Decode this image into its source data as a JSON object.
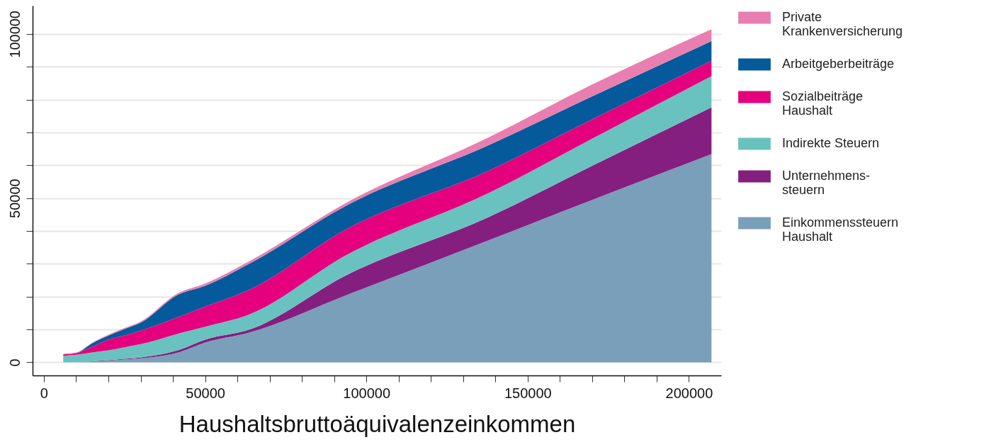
{
  "chart_data": {
    "type": "area",
    "stacked": true,
    "xlabel": "Haushaltsbruttoäquivalenzeinkommen",
    "x": [
      6000,
      10000,
      15000,
      20000,
      25000,
      30000,
      41500,
      50000,
      63500,
      94000,
      138000,
      170000,
      207000
    ],
    "series": [
      {
        "name": "Einkommenssteuern\nHaushalt",
        "color": "#7a9fba",
        "values": [
          0,
          0,
          200,
          500,
          850,
          1220,
          2950,
          6030,
          9000,
          20540,
          37210,
          49450,
          63430
        ]
      },
      {
        "name": "Unternehmens-\nsteuern",
        "color": "#841f80",
        "values": [
          0,
          0,
          100,
          140,
          200,
          280,
          710,
          870,
          900,
          6110,
          7040,
          10390,
          14230
        ]
      },
      {
        "name": "Indirekte Steuern",
        "color": "#69c2bf",
        "values": [
          2000,
          2300,
          2700,
          3020,
          3550,
          4030,
          5030,
          3940,
          4600,
          6110,
          7330,
          8260,
          9480
        ]
      },
      {
        "name": "Sozialbeiträge\nHaushalt",
        "color": "#e5007e",
        "values": [
          400,
          500,
          1740,
          3240,
          3600,
          4100,
          5030,
          6120,
          7500,
          7900,
          6830,
          5900,
          4670
        ]
      },
      {
        "name": "Arbeitgeberbeiträge",
        "color": "#045a9b",
        "values": [
          0,
          0,
          1080,
          1220,
          1930,
          2440,
          6820,
          6320,
          7900,
          7180,
          7750,
          7000,
          6030
        ]
      },
      {
        "name": "Private\nKrankenversicherung",
        "color": "#e87fb0",
        "values": [
          200,
          200,
          180,
          280,
          300,
          330,
          460,
          720,
          800,
          870,
          2370,
          3590,
          3600
        ]
      }
    ],
    "xlim": [
      -3500,
      210000
    ],
    "xticks": [
      0,
      {
        "value": 10000,
        "label": null
      },
      {
        "value": 20000,
        "label": null
      },
      {
        "value": 30000,
        "label": null
      },
      {
        "value": 40000,
        "label": null
      },
      50000,
      {
        "value": 60000,
        "label": null
      },
      {
        "value": 70000,
        "label": null
      },
      {
        "value": 80000,
        "label": null
      },
      {
        "value": 90000,
        "label": null
      },
      100000,
      {
        "value": 110000,
        "label": null
      },
      {
        "value": 120000,
        "label": null
      },
      {
        "value": 130000,
        "label": null
      },
      {
        "value": 140000,
        "label": null
      },
      150000,
      {
        "value": 160000,
        "label": null
      },
      {
        "value": 170000,
        "label": null
      },
      {
        "value": 180000,
        "label": null
      },
      {
        "value": 190000,
        "label": null
      },
      200000
    ],
    "ylim": [
      -4000,
      108600
    ],
    "yticks": [
      0,
      {
        "value": 10000,
        "label": null
      },
      {
        "value": 20000,
        "label": null
      },
      {
        "value": 30000,
        "label": null
      },
      {
        "value": 40000,
        "label": null
      },
      50000,
      {
        "value": 60000,
        "label": null
      },
      {
        "value": 70000,
        "label": null
      },
      {
        "value": 80000,
        "label": null
      },
      {
        "value": 90000,
        "label": null
      },
      100000
    ],
    "grid": "y",
    "legend": "right"
  }
}
